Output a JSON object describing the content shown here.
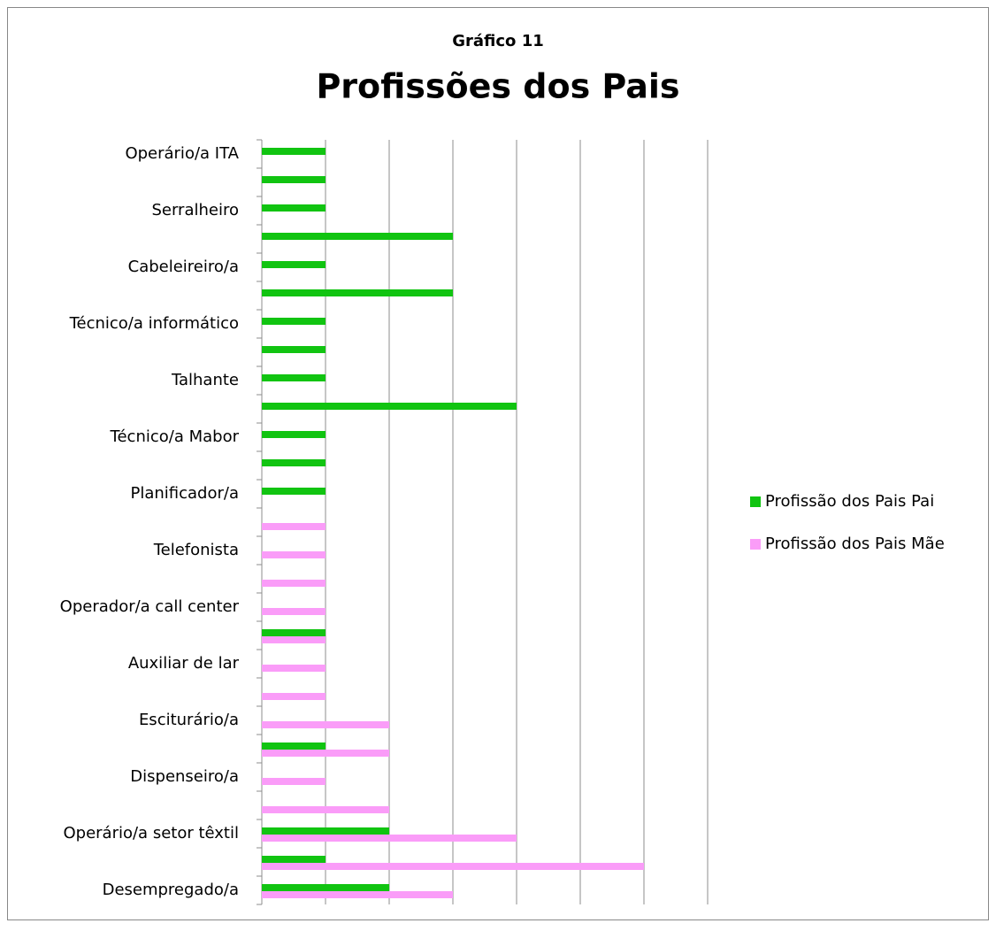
{
  "chart_data": {
    "type": "bar",
    "orientation": "horizontal",
    "subtitle": "Gráfico 11",
    "title": "Profissões dos Pais",
    "categories": [
      "Operário/a ITA",
      null,
      "Serralheiro",
      null,
      "Cabeleireiro/a",
      null,
      "Técnico/a informático",
      null,
      "Talhante",
      null,
      "Técnico/a Mabor",
      null,
      "Planificador/a",
      null,
      "Telefonista",
      null,
      "Operador/a call center",
      null,
      "Auxiliar de lar",
      null,
      "Esciturário/a",
      null,
      "Dispenseiro/a",
      null,
      "Operário/a setor têxtil",
      null,
      "Desempregado/a"
    ],
    "series": [
      {
        "name": "Profissão dos Pais Pai",
        "color": "#11c411",
        "values": [
          1,
          1,
          1,
          3,
          1,
          3,
          1,
          1,
          1,
          4,
          1,
          1,
          1,
          null,
          null,
          null,
          null,
          1,
          null,
          null,
          null,
          1,
          null,
          null,
          2,
          1,
          2
        ]
      },
      {
        "name": "Profissão dos Pais Mãe",
        "color": "#fa9cf8",
        "values": [
          null,
          null,
          null,
          null,
          null,
          null,
          null,
          null,
          null,
          null,
          null,
          null,
          null,
          1,
          1,
          1,
          1,
          1,
          1,
          1,
          2,
          2,
          1,
          2,
          4,
          6,
          3
        ]
      }
    ],
    "xlim": [
      0,
      7
    ],
    "xticks": [
      0,
      1,
      2,
      3,
      4,
      5,
      6,
      7
    ],
    "grid": true,
    "legend": "right"
  }
}
